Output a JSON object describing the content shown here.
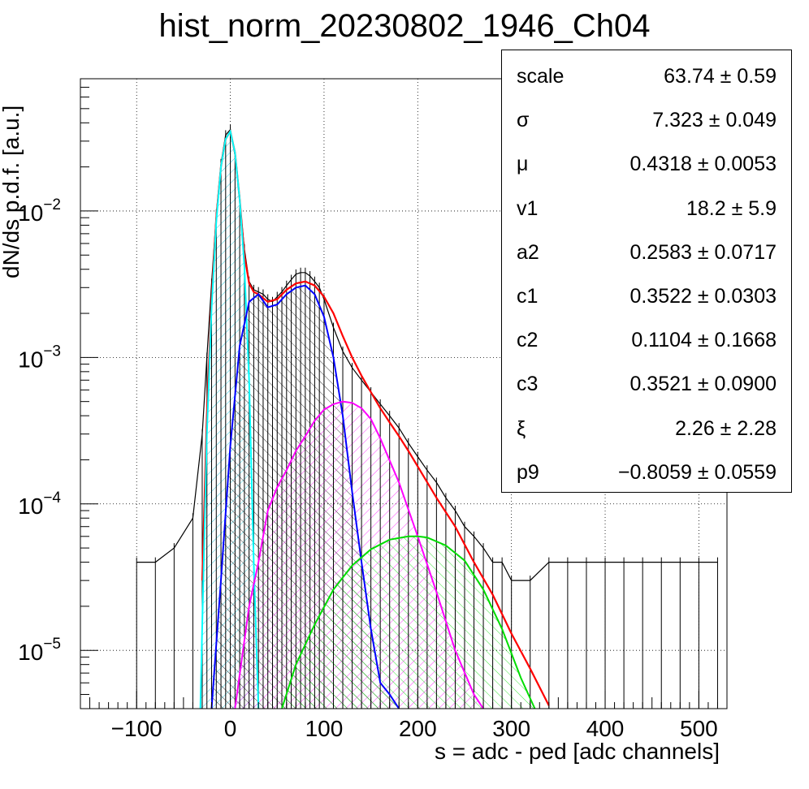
{
  "chart_data": {
    "type": "line",
    "title": "hist_norm_20230802_1946_Ch04",
    "xlabel": "s = adc - ped [adc channels]",
    "ylabel": "dN/ds p.d.f. [a.u.]",
    "xlim": [
      -160,
      530
    ],
    "ylim": [
      4e-06,
      0.08
    ],
    "yscale": "log",
    "grid": true,
    "x_ticks": [
      -100,
      0,
      100,
      200,
      300,
      400,
      500
    ],
    "x_tick_labels": [
      "−100",
      "0",
      "100",
      "200",
      "300",
      "400",
      "500"
    ],
    "y_ticks": [
      1e-05,
      0.0001,
      0.001,
      0.01
    ],
    "y_tick_labels": [
      {
        "base": "10",
        "exp": "−5"
      },
      {
        "base": "10",
        "exp": "−4"
      },
      {
        "base": "10",
        "exp": "−3"
      },
      {
        "base": "10",
        "exp": "−2"
      }
    ],
    "series": [
      {
        "kind": "histogram",
        "color": "#000000",
        "x": [
          -100,
          -80,
          -60,
          -40,
          -30,
          -25,
          -20,
          -15,
          -10,
          -5,
          0,
          5,
          10,
          15,
          20,
          25,
          30,
          35,
          40,
          45,
          50,
          55,
          60,
          65,
          70,
          75,
          80,
          85,
          90,
          95,
          100,
          110,
          120,
          130,
          140,
          150,
          160,
          170,
          180,
          190,
          200,
          210,
          220,
          230,
          240,
          250,
          260,
          270,
          280,
          290,
          300,
          320,
          340,
          360,
          380,
          400,
          420,
          440,
          460,
          480,
          500,
          520
        ],
        "y": [
          4e-05,
          4e-05,
          5e-05,
          8e-05,
          0.0003,
          0.001,
          0.0032,
          0.0095,
          0.021,
          0.033,
          0.036,
          0.024,
          0.012,
          0.0055,
          0.0033,
          0.0029,
          0.0028,
          0.0027,
          0.0025,
          0.0024,
          0.0026,
          0.0028,
          0.0031,
          0.0034,
          0.0037,
          0.0038,
          0.0038,
          0.0036,
          0.0033,
          0.003,
          0.0025,
          0.0016,
          0.0011,
          0.00085,
          0.0007,
          0.00058,
          0.00048,
          0.0004,
          0.00033,
          0.00026,
          0.00021,
          0.00017,
          0.00014,
          0.00011,
          9e-05,
          7e-05,
          6e-05,
          5e-05,
          4e-05,
          4e-05,
          3e-05,
          3e-05,
          4e-05,
          4e-05,
          4e-05,
          4e-05,
          4e-05,
          4e-05,
          4e-05,
          4e-05,
          4e-05,
          4e-05
        ]
      },
      {
        "kind": "fit-total",
        "color": "#ff0000",
        "x": [
          -30,
          -25,
          -20,
          -15,
          -10,
          -5,
          0,
          5,
          10,
          15,
          20,
          25,
          30,
          40,
          50,
          60,
          70,
          80,
          90,
          100,
          110,
          120,
          130,
          140,
          150,
          160,
          170,
          180,
          190,
          200,
          220,
          240,
          260,
          280,
          300,
          320,
          340
        ],
        "y": [
          3e-05,
          0.0004,
          0.0025,
          0.009,
          0.02,
          0.031,
          0.035,
          0.025,
          0.012,
          0.005,
          0.0032,
          0.0028,
          0.0027,
          0.0024,
          0.0025,
          0.0029,
          0.0032,
          0.0033,
          0.0031,
          0.0026,
          0.002,
          0.0014,
          0.001,
          0.00075,
          0.00058,
          0.00045,
          0.00036,
          0.00029,
          0.00023,
          0.00018,
          0.00011,
          7e-05,
          4e-05,
          2.4e-05,
          1.3e-05,
          7.5e-06,
          4.2e-06
        ]
      },
      {
        "kind": "component-pedestal",
        "color": "#00ffff",
        "hatch": "#00bcd4",
        "x": [
          -32,
          -30,
          -25,
          -20,
          -15,
          -10,
          -5,
          0,
          5,
          10,
          15,
          20,
          25,
          30
        ],
        "y": [
          4e-06,
          1.5e-05,
          0.0003,
          0.0022,
          0.0085,
          0.02,
          0.031,
          0.035,
          0.025,
          0.012,
          0.0042,
          0.0007,
          4e-05,
          4e-06
        ]
      },
      {
        "kind": "component-1pe",
        "color": "#0000ff",
        "hatch": "#000000",
        "x": [
          -20,
          -10,
          0,
          10,
          20,
          30,
          40,
          50,
          60,
          70,
          80,
          90,
          100,
          110,
          120,
          130,
          140,
          150,
          160,
          170,
          180
        ],
        "y": [
          4e-06,
          3e-05,
          0.00025,
          0.0012,
          0.0024,
          0.0027,
          0.0022,
          0.0023,
          0.0027,
          0.003,
          0.0031,
          0.0027,
          0.0019,
          0.001,
          0.0004,
          0.00012,
          4e-05,
          1.4e-05,
          6e-06,
          5e-06,
          4e-06
        ]
      },
      {
        "kind": "component-2pe",
        "color": "#ff00ff",
        "hatch": "#ff00ff",
        "x": [
          5,
          20,
          30,
          40,
          50,
          60,
          70,
          80,
          90,
          100,
          110,
          120,
          130,
          140,
          150,
          160,
          180,
          200,
          220,
          240,
          260,
          270
        ],
        "y": [
          4e-06,
          2e-05,
          4e-05,
          9e-05,
          0.00013,
          0.00017,
          0.00023,
          0.00029,
          0.00037,
          0.00044,
          0.00048,
          0.0005,
          0.00049,
          0.00045,
          0.00038,
          0.00028,
          0.00014,
          6e-05,
          2.5e-05,
          1e-05,
          5e-06,
          4e-06
        ]
      },
      {
        "kind": "component-3pe",
        "color": "#00dd00",
        "hatch": "#00dd00",
        "x": [
          55,
          70,
          90,
          110,
          130,
          150,
          170,
          190,
          200,
          210,
          230,
          250,
          270,
          290,
          310,
          325
        ],
        "y": [
          4e-06,
          8e-06,
          1.5e-05,
          2.6e-05,
          3.8e-05,
          4.9e-05,
          5.7e-05,
          6e-05,
          6e-05,
          5.9e-05,
          5.2e-05,
          4.1e-05,
          2.6e-05,
          1.4e-05,
          6.5e-06,
          4e-06
        ]
      }
    ]
  },
  "stats": {
    "rows": [
      {
        "name": "scale",
        "value": "63.74 ± 0.59"
      },
      {
        "name": "σ",
        "value": "7.323 ± 0.049"
      },
      {
        "name": "μ",
        "value": "0.4318 ± 0.0053"
      },
      {
        "name": "v1",
        "value": "18.2 ± 5.9"
      },
      {
        "name": "a2",
        "value": "0.2583 ± 0.0717"
      },
      {
        "name": "c1",
        "value": "0.3522 ± 0.0303"
      },
      {
        "name": "c2",
        "value": "0.1104 ± 0.1668"
      },
      {
        "name": "c3",
        "value": "0.3521 ± 0.0900"
      },
      {
        "name": "ξ",
        "value": "2.26 ± 2.28"
      },
      {
        "name": "p9",
        "value": "−0.8059 ± 0.0559"
      }
    ]
  }
}
